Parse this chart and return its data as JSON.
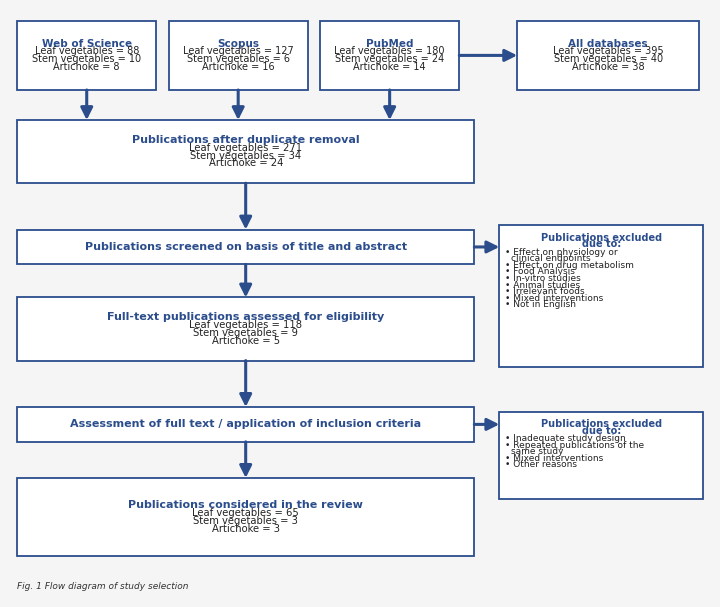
{
  "title": "Fig. 1 Flow diagram of study selection",
  "bg_color": "#f5f5f5",
  "box_edge_color": "#2b4d8c",
  "box_fill_color": "#ffffff",
  "arrow_color": "#2b4d8c",
  "wos": {
    "label_bold": "Web of Science",
    "label_rest": "Leaf vegetables = 88\nStem vegetables = 10\nArtichoke = 8"
  },
  "scopus": {
    "label_bold": "Scopus",
    "label_rest": "Leaf vegetables = 127\nStem vegetables = 6\nArtichoke = 16"
  },
  "pubmed": {
    "label_bold": "PubMed",
    "label_rest": "Leaf vegetables = 180\nStem vegetables = 24\nArtichoke = 14"
  },
  "alldbs": {
    "label_bold": "All databases",
    "label_rest": "Leaf vegetables = 395\nStem vegetables = 40\nArtichoke = 38"
  },
  "dedup": {
    "label_bold": "Publications after duplicate removal",
    "label_rest": "Leaf vegetables = 271\nStem vegetables = 34\nArtichoke = 24"
  },
  "screened": {
    "label_bold": "Publications screened on basis of title and abstract",
    "label_rest": ""
  },
  "fulltext": {
    "label_bold": "Full-text publications assessed for eligibility",
    "label_rest": "Leaf vegetables = 118\nStem vegetables = 9\nArtichoke = 5"
  },
  "assessment": {
    "label_bold": "Assessment of full text / application of inclusion criteria",
    "label_rest": ""
  },
  "final": {
    "label_bold": "Publications considered in the review",
    "label_rest": "Leaf vegetables = 65\nStem vegetables = 3\nArtichoke = 3"
  },
  "excl1_bold": "Publications excluded\ndue to:",
  "excl1_items": [
    "Effect on physiology or\nclinical endpoints",
    "Effect on drug metabolism",
    "Food Analysis",
    "In-vitro studies",
    "Animal studies",
    "Irrelevant foods",
    "Mixed interventions",
    "Not in English"
  ],
  "excl2_bold": "Publications excluded\ndue to:",
  "excl2_items": [
    "Inadequate study design",
    "Repeated publications of the\nsame study",
    "Mixed interventions",
    "Other reasons"
  ]
}
